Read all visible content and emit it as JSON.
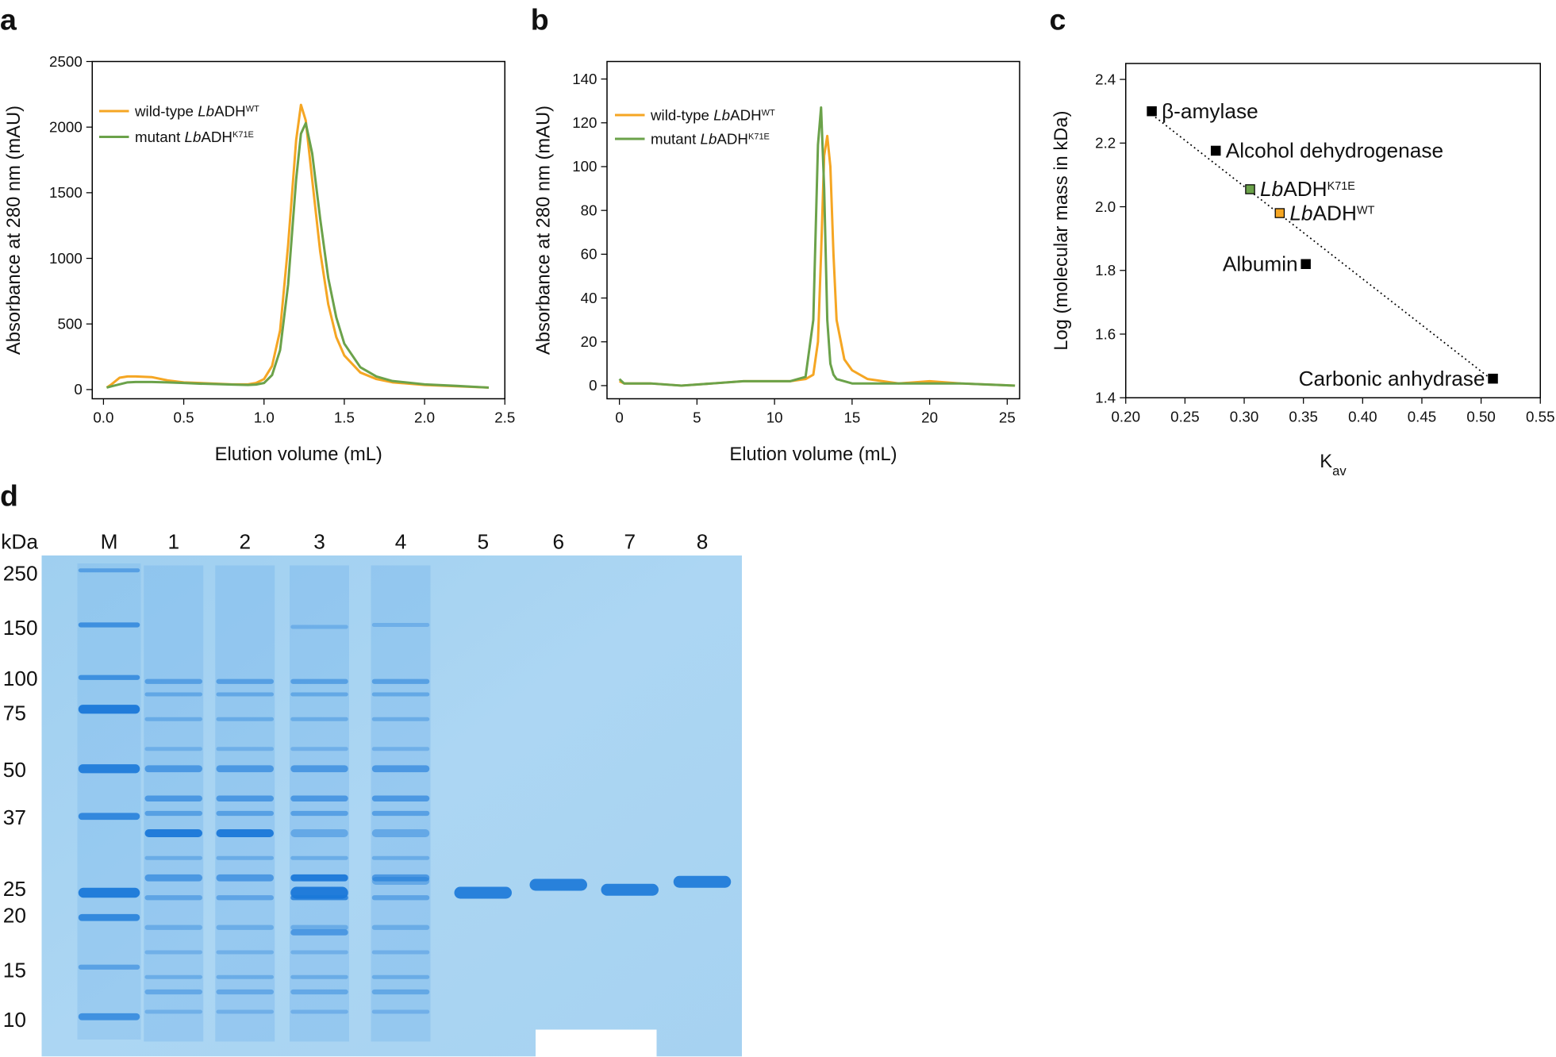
{
  "chart_data": [
    {
      "type": "line",
      "panel_label": "a",
      "x_label": "Elution volume (mL)",
      "y_label": "Absorbance at 280 nm (mAU)",
      "x": [
        0.02,
        0.05,
        0.1,
        0.15,
        0.2,
        0.3,
        0.4,
        0.5,
        0.6,
        0.7,
        0.8,
        0.9,
        0.95,
        1.0,
        1.05,
        1.1,
        1.15,
        1.2,
        1.23,
        1.26,
        1.3,
        1.35,
        1.4,
        1.45,
        1.5,
        1.6,
        1.7,
        1.8,
        2.0,
        2.2,
        2.4
      ],
      "series": [
        {
          "name": {
            "text": "wild-type ",
            "italic": "Lb",
            "rest": "ADH",
            "sup": "WT"
          },
          "color": "#f5a623",
          "values": [
            15,
            40,
            90,
            100,
            100,
            95,
            70,
            55,
            50,
            45,
            40,
            40,
            50,
            80,
            180,
            450,
            1100,
            1900,
            2170,
            2050,
            1600,
            1050,
            650,
            400,
            260,
            130,
            80,
            55,
            35,
            25,
            15
          ]
        },
        {
          "name": {
            "text": "mutant ",
            "italic": "Lb",
            "rest": "ADH",
            "sup": "K71E"
          },
          "color": "#6ba24a",
          "values": [
            15,
            25,
            40,
            55,
            58,
            58,
            55,
            50,
            45,
            42,
            38,
            35,
            38,
            50,
            110,
            300,
            800,
            1600,
            1950,
            2030,
            1800,
            1300,
            850,
            550,
            350,
            170,
            100,
            65,
            40,
            28,
            15
          ]
        }
      ],
      "xlim": [
        -0.07,
        2.5
      ],
      "ylim": [
        -70,
        2500
      ],
      "xticks": [
        {
          "value": 0,
          "label": "0.0"
        },
        0.5,
        {
          "value": 1,
          "label": "1.0"
        },
        1.5,
        {
          "value": 2,
          "label": "2.0"
        },
        2.5
      ],
      "yticks": [
        0,
        500,
        1000,
        1500,
        2000,
        2500
      ],
      "legend": "upper left"
    },
    {
      "type": "line",
      "panel_label": "b",
      "x_label": "Elution volume (mL)",
      "y_label": "Absorbance at 280 nm (mAU)",
      "x": [
        0,
        0.3,
        2,
        4,
        6,
        8,
        10,
        11,
        12,
        12.5,
        12.8,
        13.0,
        13.2,
        13.4,
        13.6,
        13.8,
        14,
        14.5,
        15,
        16,
        18,
        20,
        22,
        25.5
      ],
      "series": [
        {
          "name": {
            "text": "wild-type ",
            "italic": "Lb",
            "rest": "ADH",
            "sup": "WT"
          },
          "color": "#f5a623",
          "values": [
            2,
            1,
            1,
            0,
            1,
            2,
            2,
            2,
            3,
            5,
            20,
            60,
            105,
            114,
            100,
            60,
            30,
            12,
            7,
            3,
            1,
            2,
            1,
            0
          ]
        },
        {
          "name": {
            "text": "mutant ",
            "italic": "Lb",
            "rest": "ADH",
            "sup": "K71E"
          },
          "color": "#6ba24a",
          "values": [
            3,
            1,
            1,
            0,
            1,
            2,
            2,
            2,
            4,
            30,
            110,
            127,
            90,
            30,
            10,
            5,
            3,
            2,
            1,
            1,
            1,
            1,
            1,
            0
          ]
        }
      ],
      "xlim": [
        -0.8,
        25.8
      ],
      "ylim": [
        -6,
        148
      ],
      "xticks": [
        0,
        5,
        10,
        15,
        20,
        25
      ],
      "yticks": [
        0,
        20,
        40,
        60,
        80,
        100,
        120,
        140
      ],
      "legend": "upper left"
    },
    {
      "type": "scatter",
      "panel_label": "c",
      "x_label": {
        "text": "K",
        "sub": "av"
      },
      "y_label": "Log (molecular mass in kDa)",
      "x": [
        0.222,
        0.276,
        0.305,
        0.33,
        0.352,
        0.51
      ],
      "values": [
        2.3,
        2.176,
        2.055,
        1.98,
        1.82,
        1.46
      ],
      "labels": [
        "β-amylase",
        "Alcohol dehydrogenase",
        {
          "italic": "Lb",
          "rest": "ADH",
          "sup": "K71E"
        },
        {
          "italic": "Lb",
          "rest": "ADH",
          "sup": "WT"
        },
        "Albumin",
        "Carbonic anhydrase"
      ],
      "colors": [
        "#000000",
        "#000000",
        "#6ba24a",
        "#f5a623",
        "#000000",
        "#000000"
      ],
      "trendline": {
        "x": [
          0.222,
          0.508
        ],
        "values": [
          2.29,
          1.46
        ]
      },
      "xlim": [
        0.2,
        0.55
      ],
      "ylim": [
        1.4,
        2.45
      ],
      "xticks": [
        {
          "value": 0.2,
          "label": "0.20"
        },
        0.25,
        {
          "value": 0.3,
          "label": "0.30"
        },
        0.35,
        {
          "value": 0.4,
          "label": "0.40"
        },
        0.45,
        {
          "value": 0.5,
          "label": "0.50"
        },
        0.55
      ],
      "yticks": [
        1.4,
        1.6,
        1.8,
        {
          "value": 2,
          "label": "2.0"
        },
        2.2,
        2.4
      ]
    }
  ],
  "gel": {
    "panel_label": "d",
    "unit_label": "kDa",
    "lane_labels": [
      "M",
      "1",
      "2",
      "3",
      "4",
      "5",
      "6",
      "7",
      "8"
    ],
    "marker_sizes": [
      "250",
      "150",
      "100",
      "75",
      "50",
      "37",
      "25",
      "20",
      "15",
      "10"
    ]
  }
}
